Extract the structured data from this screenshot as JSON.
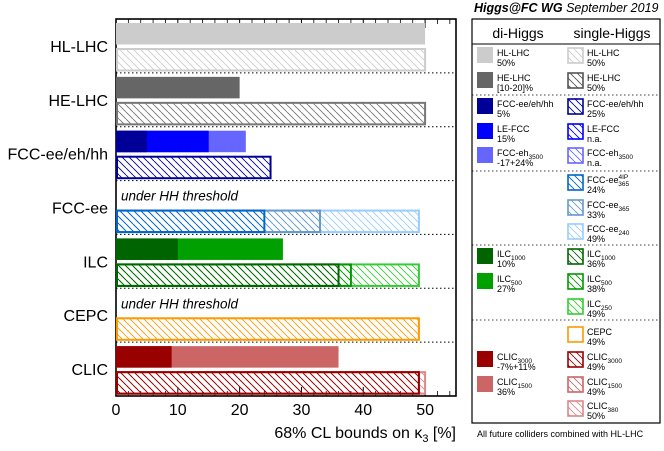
{
  "header": {
    "group": "Higgs@FC WG",
    "date": "September 2019"
  },
  "legend": {
    "col_di": "di-Higgs",
    "col_single": "single-Higgs",
    "footnote": "All future colliders combined with HL-LHC",
    "entries": [
      {
        "key": "hl-di",
        "lines": [
          [
            "HL-LHC"
          ],
          [
            "50%"
          ]
        ]
      },
      {
        "key": "hl-single",
        "lines": [
          [
            "HL-LHC"
          ],
          [
            "50%"
          ]
        ]
      },
      {
        "key": "he-di",
        "lines": [
          [
            "HE-LHC"
          ],
          [
            "[10-20]%"
          ]
        ]
      },
      {
        "key": "he-single",
        "lines": [
          [
            "HE-LHC"
          ],
          [
            "50%"
          ]
        ]
      },
      {
        "key": "fcc-di",
        "lines": [
          [
            "FCC-ee/eh/hh"
          ],
          [
            "5%"
          ]
        ]
      },
      {
        "key": "fcc-single",
        "lines": [
          [
            "FCC-ee/eh/hh"
          ],
          [
            "25%"
          ]
        ]
      },
      {
        "key": "lefcc-di",
        "lines": [
          [
            "LE-FCC"
          ],
          [
            "15%"
          ]
        ]
      },
      {
        "key": "lefcc-single",
        "lines": [
          [
            "LE-FCC"
          ],
          [
            "n.a."
          ]
        ]
      },
      {
        "key": "ehfcc-di",
        "lines": [
          [
            "FCC-eh",
            "3500"
          ],
          [
            "-17+24%"
          ]
        ]
      },
      {
        "key": "ehfcc-single",
        "lines": [
          [
            "FCC-eh",
            "3500"
          ],
          [
            "n.a."
          ]
        ]
      },
      {
        "key": "ee4ip-single",
        "lines": [
          [
            "FCC-ee",
            "365",
            "4IP"
          ],
          [
            "24%"
          ]
        ]
      },
      {
        "key": "ee365-single",
        "lines": [
          [
            "FCC-ee",
            "365"
          ],
          [
            "33%"
          ]
        ]
      },
      {
        "key": "ee240-single",
        "lines": [
          [
            "FCC-ee",
            "240"
          ],
          [
            "49%"
          ]
        ]
      },
      {
        "key": "ilc1000-di",
        "lines": [
          [
            "ILC",
            "1000"
          ],
          [
            "10%"
          ]
        ]
      },
      {
        "key": "ilc1000-single",
        "lines": [
          [
            "ILC",
            "1000"
          ],
          [
            "36%"
          ]
        ]
      },
      {
        "key": "ilc500-di",
        "lines": [
          [
            "ILC",
            "500"
          ],
          [
            "27%"
          ]
        ]
      },
      {
        "key": "ilc500-single",
        "lines": [
          [
            "ILC",
            "500"
          ],
          [
            "38%"
          ]
        ]
      },
      {
        "key": "ilc250-single",
        "lines": [
          [
            "ILC",
            "250"
          ],
          [
            "49%"
          ]
        ]
      },
      {
        "key": "cepc-single",
        "lines": [
          [
            "CEPC"
          ],
          [
            "49%"
          ]
        ]
      },
      {
        "key": "clic3000-di",
        "lines": [
          [
            "CLIC",
            "3000"
          ],
          [
            "-7%+11%"
          ]
        ]
      },
      {
        "key": "clic3000-single",
        "lines": [
          [
            "CLIC",
            "3000"
          ],
          [
            "49%"
          ]
        ]
      },
      {
        "key": "clic1500-di",
        "lines": [
          [
            "CLIC",
            "1500"
          ],
          [
            "36%"
          ]
        ]
      },
      {
        "key": "clic1500-single",
        "lines": [
          [
            "CLIC",
            "1500"
          ],
          [
            "49%"
          ]
        ]
      },
      {
        "key": "clic380-single",
        "lines": [
          [
            "CLIC",
            "380"
          ],
          [
            "50%"
          ]
        ]
      }
    ]
  },
  "chart_data": {
    "type": "bar",
    "orientation": "horizontal",
    "xlabel": "68% CL bounds on κ",
    "xlabel_sub": "3",
    "xlabel_unit": " [%]",
    "xlim": [
      0,
      55
    ],
    "xticks": [
      0,
      10,
      20,
      30,
      40,
      50
    ],
    "categories": [
      "HL-LHC",
      "HE-LHC",
      "FCC-ee/eh/hh",
      "FCC-ee",
      "ILC",
      "CEPC",
      "CLIC"
    ],
    "annotations": [
      {
        "category": "FCC-ee",
        "text": "under HH threshold"
      },
      {
        "category": "CEPC",
        "text": "under HH threshold"
      }
    ],
    "series": [
      {
        "name": "di-Higgs",
        "bars": [
          {
            "category": "HL-LHC",
            "segments": [
              {
                "label": "HL-LHC",
                "value": 50,
                "color": "#cccccc"
              }
            ]
          },
          {
            "category": "HE-LHC",
            "segments": [
              {
                "label": "HE-LHC",
                "value": 20,
                "color": "#666666"
              }
            ]
          },
          {
            "category": "FCC-ee/eh/hh",
            "segments": [
              {
                "label": "FCC-eh3500",
                "value": 21,
                "color": "#6666ff"
              },
              {
                "label": "LE-FCC",
                "value": 15,
                "color": "#0000ff"
              },
              {
                "label": "FCC-ee/eh/hh",
                "value": 5,
                "color": "#000099"
              }
            ]
          },
          {
            "category": "ILC",
            "segments": [
              {
                "label": "ILC500",
                "value": 27,
                "color": "#00a000"
              },
              {
                "label": "ILC1000",
                "value": 10,
                "color": "#006400"
              }
            ]
          },
          {
            "category": "CLIC",
            "segments": [
              {
                "label": "CLIC1500",
                "value": 36,
                "color": "#cc6666"
              },
              {
                "label": "CLIC3000",
                "value": 9,
                "color": "#990000"
              }
            ]
          }
        ]
      },
      {
        "name": "single-Higgs",
        "bars": [
          {
            "category": "HL-LHC",
            "segments": [
              {
                "label": "HL-LHC",
                "value": 50,
                "color": "#cccccc"
              }
            ]
          },
          {
            "category": "HE-LHC",
            "segments": [
              {
                "label": "HE-LHC",
                "value": 50,
                "color": "#777777"
              }
            ]
          },
          {
            "category": "FCC-ee/eh/hh",
            "segments": [
              {
                "label": "FCC-ee/eh/hh",
                "value": 25,
                "color": "#000099"
              }
            ]
          },
          {
            "category": "FCC-ee",
            "segments": [
              {
                "label": "FCC-ee240",
                "value": 49,
                "color": "#99ccff"
              },
              {
                "label": "FCC-ee365",
                "value": 33,
                "color": "#6699cc"
              },
              {
                "label": "FCC-ee365 4IP",
                "value": 24,
                "color": "#0066cc"
              }
            ]
          },
          {
            "category": "ILC",
            "segments": [
              {
                "label": "ILC250",
                "value": 49,
                "color": "#33cc33"
              },
              {
                "label": "ILC500",
                "value": 38,
                "color": "#009900"
              },
              {
                "label": "ILC1000",
                "value": 36,
                "color": "#006600"
              }
            ]
          },
          {
            "category": "CEPC",
            "segments": [
              {
                "label": "CEPC",
                "value": 49,
                "color": "#ff9900"
              }
            ]
          },
          {
            "category": "CLIC",
            "segments": [
              {
                "label": "CLIC380",
                "value": 50,
                "color": "#dd8888"
              },
              {
                "label": "CLIC1500",
                "value": 49,
                "color": "#cc6666"
              },
              {
                "label": "CLIC3000",
                "value": 49,
                "color": "#990000"
              }
            ]
          }
        ]
      }
    ]
  }
}
